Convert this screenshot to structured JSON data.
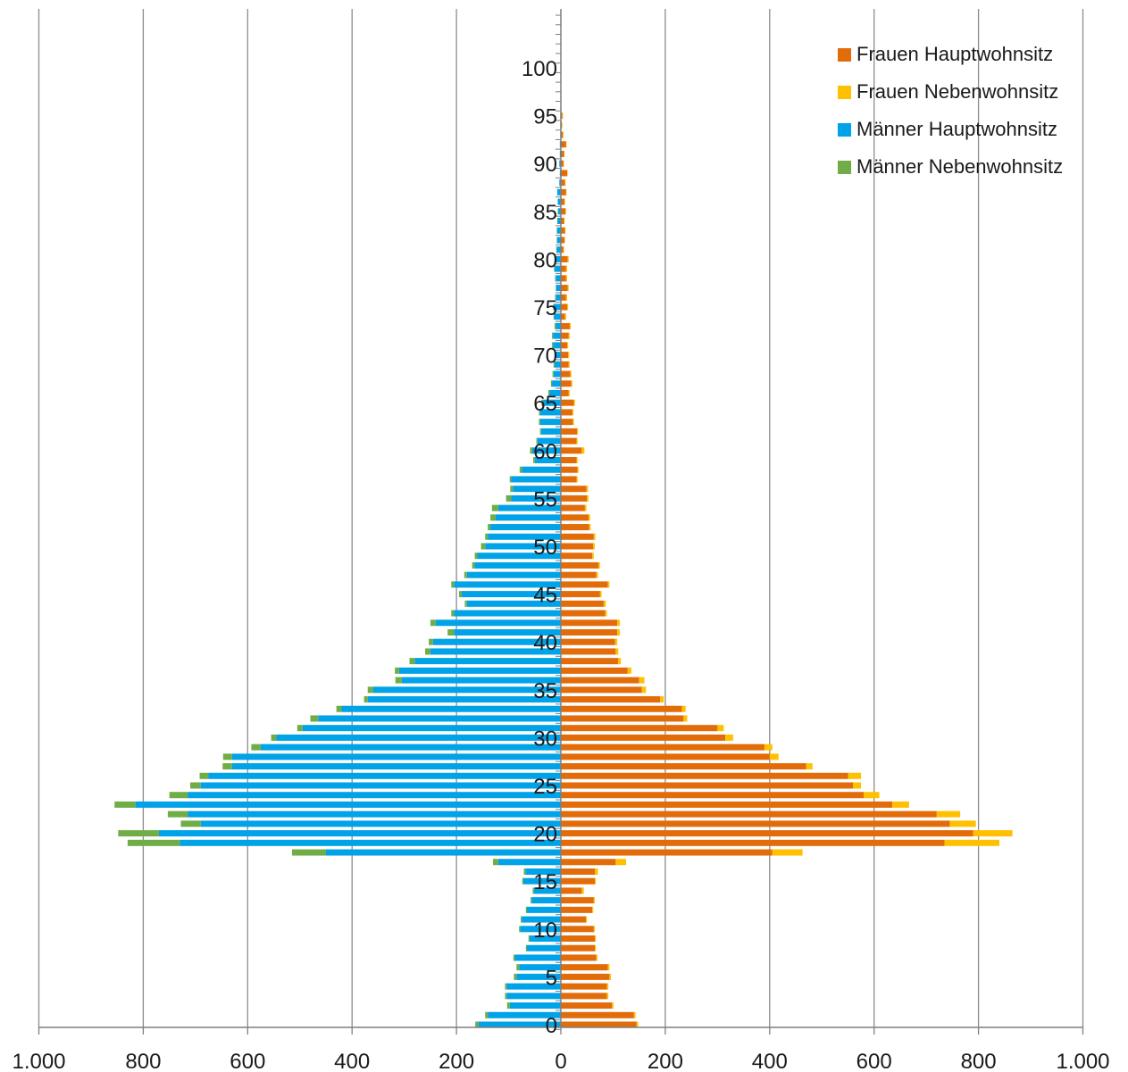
{
  "chart_data": {
    "type": "bar",
    "orientation": "horizontal-population-pyramid",
    "stacked": true,
    "title": "",
    "xlabel": "",
    "ylabel": "",
    "x_ticks": [
      -1000,
      -800,
      -600,
      -400,
      -200,
      0,
      200,
      400,
      600,
      800,
      1000
    ],
    "x_tick_labels": [
      "1.000",
      "800",
      "600",
      "400",
      "200",
      "0",
      "200",
      "400",
      "600",
      "800",
      "1.000"
    ],
    "xlim": [
      -1000,
      1000
    ],
    "y_tick_labels": [
      "0",
      "5",
      "10",
      "15",
      "20",
      "25",
      "30",
      "35",
      "40",
      "45",
      "50",
      "55",
      "60",
      "65",
      "70",
      "75",
      "80",
      "85",
      "90",
      "95",
      "100"
    ],
    "ylim": [
      0,
      105
    ],
    "grid": "vertical gridlines at x ticks",
    "legend_position": "top-right",
    "ages": [
      0,
      1,
      2,
      3,
      4,
      5,
      6,
      7,
      8,
      9,
      10,
      11,
      12,
      13,
      14,
      15,
      16,
      17,
      18,
      19,
      20,
      21,
      22,
      23,
      24,
      25,
      26,
      27,
      28,
      29,
      30,
      31,
      32,
      33,
      34,
      35,
      36,
      37,
      38,
      39,
      40,
      41,
      42,
      43,
      44,
      45,
      46,
      47,
      48,
      49,
      50,
      51,
      52,
      53,
      54,
      55,
      56,
      57,
      58,
      59,
      60,
      61,
      62,
      63,
      64,
      65,
      66,
      67,
      68,
      69,
      70,
      71,
      72,
      73,
      74,
      75,
      76,
      77,
      78,
      79,
      80,
      81,
      82,
      83,
      84,
      85,
      86,
      87,
      88,
      89,
      90,
      91,
      92,
      93,
      94,
      95,
      96,
      97,
      98,
      99,
      100
    ],
    "series": [
      {
        "name": "Frauen Hauptwohnsitz",
        "color": "#E36C0A",
        "side": "right",
        "values": [
          145,
          140,
          98,
          88,
          88,
          93,
          90,
          68,
          65,
          65,
          63,
          48,
          60,
          63,
          40,
          65,
          65,
          105,
          405,
          735,
          790,
          745,
          720,
          635,
          580,
          560,
          550,
          470,
          400,
          390,
          315,
          300,
          235,
          232,
          190,
          155,
          150,
          128,
          110,
          105,
          104,
          108,
          108,
          85,
          82,
          75,
          90,
          68,
          72,
          60,
          62,
          63,
          54,
          53,
          46,
          50,
          49,
          30,
          32,
          30,
          40,
          30,
          31,
          23,
          22,
          25,
          15,
          20,
          18,
          15,
          14,
          12,
          15,
          17,
          8,
          12,
          10,
          13,
          10,
          10,
          13,
          5,
          7,
          8,
          6,
          9,
          7,
          10,
          8,
          12,
          5,
          6,
          10,
          4,
          2,
          3,
          1,
          1,
          0,
          0,
          0
        ]
      },
      {
        "name": "Frauen Nebenwohnsitz",
        "color": "#FFC000",
        "side": "right",
        "values": [
          3,
          3,
          3,
          3,
          3,
          3,
          3,
          2,
          2,
          2,
          2,
          2,
          2,
          2,
          4,
          2,
          6,
          20,
          58,
          105,
          75,
          50,
          45,
          32,
          30,
          15,
          25,
          12,
          17,
          15,
          15,
          12,
          7,
          7,
          7,
          8,
          10,
          7,
          5,
          5,
          4,
          5,
          5,
          3,
          4,
          3,
          3,
          3,
          3,
          3,
          3,
          3,
          3,
          3,
          3,
          3,
          3,
          2,
          2,
          2,
          5,
          2,
          2,
          2,
          2,
          2,
          2,
          2,
          2,
          2,
          2,
          2,
          2,
          2,
          2,
          2,
          2,
          2,
          2,
          2,
          2,
          1,
          1,
          1,
          1,
          1,
          1,
          1,
          1,
          1,
          1,
          1,
          1,
          1,
          1,
          1,
          0,
          0,
          0,
          0,
          0
        ]
      },
      {
        "name": "Männer Hauptwohnsitz",
        "color": "#00A2E8",
        "side": "left",
        "values": [
          158,
          140,
          98,
          104,
          104,
          85,
          80,
          88,
          65,
          60,
          78,
          75,
          65,
          56,
          52,
          72,
          68,
          120,
          450,
          730,
          770,
          690,
          715,
          815,
          715,
          690,
          675,
          630,
          630,
          575,
          545,
          495,
          465,
          420,
          370,
          360,
          305,
          310,
          280,
          250,
          245,
          205,
          240,
          205,
          180,
          190,
          205,
          180,
          165,
          160,
          145,
          140,
          135,
          125,
          120,
          95,
          92,
          95,
          75,
          50,
          55,
          45,
          38,
          40,
          40,
          35,
          22,
          17,
          14,
          12,
          10,
          15,
          15,
          10,
          13,
          14,
          10,
          9,
          10,
          12,
          9,
          8,
          7,
          7,
          6,
          5,
          6,
          7,
          3,
          2,
          3,
          2,
          2,
          1,
          1,
          1,
          0,
          0,
          0,
          0,
          0
        ]
      },
      {
        "name": "Männer Nebenwohnsitz",
        "color": "#70AD47",
        "side": "left",
        "values": [
          6,
          5,
          5,
          3,
          3,
          5,
          5,
          3,
          2,
          2,
          2,
          2,
          2,
          2,
          2,
          2,
          3,
          10,
          65,
          100,
          78,
          38,
          38,
          40,
          35,
          20,
          17,
          18,
          17,
          18,
          10,
          10,
          15,
          10,
          7,
          10,
          12,
          8,
          10,
          10,
          8,
          12,
          10,
          5,
          4,
          5,
          5,
          5,
          5,
          5,
          8,
          5,
          5,
          10,
          12,
          10,
          5,
          3,
          4,
          3,
          4,
          2,
          2,
          2,
          2,
          2,
          2,
          2,
          2,
          2,
          2,
          2,
          2,
          2,
          1,
          1,
          1,
          1,
          1,
          1,
          1,
          1,
          1,
          1,
          1,
          1,
          0,
          0,
          0,
          0,
          0,
          0,
          0,
          0,
          0,
          0,
          0,
          0,
          0,
          0,
          0
        ]
      }
    ]
  }
}
